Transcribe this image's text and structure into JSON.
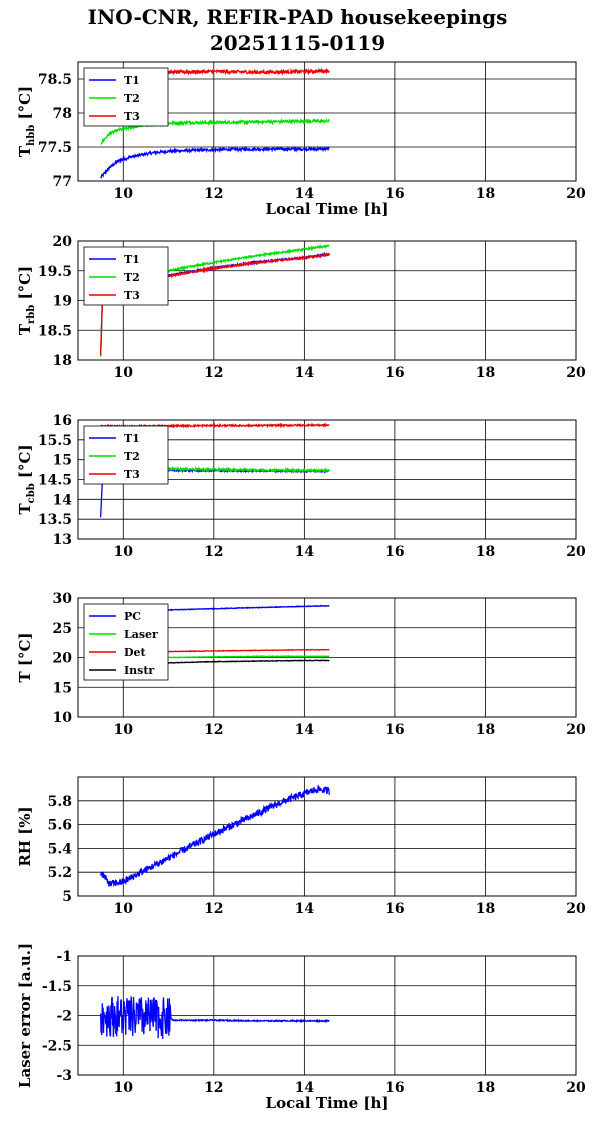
{
  "page": {
    "title_line1": "INO-CNR, REFIR-PAD housekeepings",
    "title_line2": "20251115-0119"
  },
  "colors": {
    "blue": "#0000ff",
    "green": "#00dd00",
    "red": "#ee0000",
    "black": "#000000"
  },
  "chart_data": [
    {
      "type": "line",
      "ylabel": "T",
      "ylabel_sub": "hbb",
      "ylabel_unit": "[°C]",
      "xlabel": "Local Time [h]",
      "xlim": [
        9,
        20
      ],
      "ylim": [
        77,
        78.75
      ],
      "xticks": [
        "10",
        "12",
        "14",
        "16",
        "18",
        "20"
      ],
      "yticks": [
        "77",
        "77.5",
        "78",
        "78.5"
      ],
      "legend": "top-left",
      "series": [
        {
          "name": "T1",
          "color": "#0000ff",
          "points": [
            [
              9.5,
              77.05
            ],
            [
              9.7,
              77.2
            ],
            [
              9.9,
              77.3
            ],
            [
              10.2,
              77.36
            ],
            [
              10.6,
              77.41
            ],
            [
              11,
              77.44
            ],
            [
              11.5,
              77.45
            ],
            [
              12,
              77.46
            ],
            [
              13,
              77.47
            ],
            [
              14,
              77.47
            ],
            [
              14.55,
              77.47
            ]
          ],
          "noise": 0.02
        },
        {
          "name": "T2",
          "color": "#00dd00",
          "points": [
            [
              9.5,
              77.55
            ],
            [
              9.7,
              77.7
            ],
            [
              9.9,
              77.75
            ],
            [
              10.2,
              77.79
            ],
            [
              10.6,
              77.83
            ],
            [
              11,
              77.85
            ],
            [
              11.5,
              77.86
            ],
            [
              12,
              77.86
            ],
            [
              13,
              77.87
            ],
            [
              14,
              77.88
            ],
            [
              14.55,
              77.88
            ]
          ],
          "noise": 0.02
        },
        {
          "name": "T3",
          "color": "#ee0000",
          "points": [
            [
              9.5,
              78.62
            ],
            [
              9.7,
              78.58
            ],
            [
              10,
              78.57
            ],
            [
              10.5,
              78.59
            ],
            [
              11,
              78.6
            ],
            [
              12,
              78.61
            ],
            [
              13,
              78.6
            ],
            [
              14,
              78.61
            ],
            [
              14.55,
              78.62
            ]
          ],
          "noise": 0.025
        }
      ]
    },
    {
      "type": "line",
      "ylabel": "T",
      "ylabel_sub": "rbb",
      "ylabel_unit": "[°C]",
      "xlabel": "",
      "xlim": [
        9,
        20
      ],
      "ylim": [
        18,
        20
      ],
      "xticks": [
        "10",
        "12",
        "14",
        "16",
        "18",
        "20"
      ],
      "yticks": [
        "18",
        "18.5",
        "19",
        "19.5",
        "20"
      ],
      "legend": "top-left",
      "series": [
        {
          "name": "T1",
          "color": "#0000ff",
          "points": [
            [
              9.5,
              18.05
            ],
            [
              9.55,
              19.3
            ],
            [
              10,
              19.32
            ],
            [
              10.5,
              19.36
            ],
            [
              11,
              19.42
            ],
            [
              12,
              19.55
            ],
            [
              13,
              19.65
            ],
            [
              14,
              19.72
            ],
            [
              14.55,
              19.78
            ]
          ],
          "noise": 0.015
        },
        {
          "name": "T2",
          "color": "#00dd00",
          "points": [
            [
              9.5,
              18.05
            ],
            [
              9.55,
              19.35
            ],
            [
              10,
              19.37
            ],
            [
              10.5,
              19.43
            ],
            [
              11,
              19.5
            ],
            [
              12,
              19.64
            ],
            [
              13,
              19.76
            ],
            [
              14,
              19.86
            ],
            [
              14.55,
              19.92
            ]
          ],
          "noise": 0.015
        },
        {
          "name": "T3",
          "color": "#ee0000",
          "points": [
            [
              9.5,
              18.1
            ],
            [
              9.55,
              19.3
            ],
            [
              10,
              19.33
            ],
            [
              10.5,
              19.36
            ],
            [
              11,
              19.41
            ],
            [
              12,
              19.54
            ],
            [
              13,
              19.64
            ],
            [
              14,
              19.72
            ],
            [
              14.55,
              19.77
            ]
          ],
          "noise": 0.015
        }
      ]
    },
    {
      "type": "line",
      "ylabel": "T",
      "ylabel_sub": "cbb",
      "ylabel_unit": "[°C]",
      "xlabel": "",
      "xlim": [
        9,
        20
      ],
      "ylim": [
        13,
        16
      ],
      "xticks": [
        "10",
        "12",
        "14",
        "16",
        "18",
        "20"
      ],
      "yticks": [
        "13",
        "13.5",
        "14",
        "14.5",
        "15",
        "15.5",
        "16"
      ],
      "legend": "top-left",
      "series": [
        {
          "name": "T1",
          "color": "#0000ff",
          "points": [
            [
              9.5,
              13.55
            ],
            [
              9.55,
              14.75
            ],
            [
              10,
              14.74
            ],
            [
              11,
              14.73
            ],
            [
              12,
              14.72
            ],
            [
              13,
              14.72
            ],
            [
              14,
              14.71
            ],
            [
              14.55,
              14.71
            ]
          ],
          "noise": 0.02
        },
        {
          "name": "T2",
          "color": "#00dd00",
          "points": [
            [
              9.5,
              14.5
            ],
            [
              9.55,
              14.78
            ],
            [
              10,
              14.78
            ],
            [
              11,
              14.77
            ],
            [
              12,
              14.75
            ],
            [
              13,
              14.74
            ],
            [
              14,
              14.73
            ],
            [
              14.55,
              14.73
            ]
          ],
          "noise": 0.025
        },
        {
          "name": "T3",
          "color": "#ee0000",
          "points": [
            [
              9.5,
              15.85
            ],
            [
              10,
              15.84
            ],
            [
              11,
              15.85
            ],
            [
              12,
              15.86
            ],
            [
              13,
              15.86
            ],
            [
              14,
              15.87
            ],
            [
              14.55,
              15.87
            ]
          ],
          "noise": 0.02
        }
      ]
    },
    {
      "type": "line",
      "ylabel": "T [°C]",
      "ylabel_sub": "",
      "ylabel_unit": "",
      "xlabel": "",
      "xlim": [
        9,
        20
      ],
      "ylim": [
        10,
        30
      ],
      "xticks": [
        "10",
        "12",
        "14",
        "16",
        "18",
        "20"
      ],
      "yticks": [
        "10",
        "15",
        "20",
        "25",
        "30"
      ],
      "legend": "top-left",
      "series": [
        {
          "name": "PC",
          "color": "#0000ff",
          "points": [
            [
              9.5,
              27.7
            ],
            [
              10,
              27.8
            ],
            [
              11,
              28.0
            ],
            [
              12,
              28.2
            ],
            [
              13,
              28.4
            ],
            [
              14,
              28.6
            ],
            [
              14.55,
              28.7
            ]
          ],
          "noise": 0.05
        },
        {
          "name": "Laser",
          "color": "#00dd00",
          "points": [
            [
              9.5,
              19.8
            ],
            [
              10,
              19.9
            ],
            [
              11,
              20.0
            ],
            [
              12,
              20.1
            ],
            [
              13,
              20.2
            ],
            [
              14,
              20.2
            ],
            [
              14.55,
              20.2
            ]
          ],
          "noise": 0.04
        },
        {
          "name": "Det",
          "color": "#ee0000",
          "points": [
            [
              9.5,
              20.6
            ],
            [
              10,
              20.8
            ],
            [
              11,
              21.0
            ],
            [
              12,
              21.1
            ],
            [
              13,
              21.2
            ],
            [
              14,
              21.3
            ],
            [
              14.55,
              21.3
            ]
          ],
          "noise": 0.04
        },
        {
          "name": "Instr",
          "color": "#000000",
          "points": [
            [
              9.5,
              18.9
            ],
            [
              10,
              19.0
            ],
            [
              11,
              19.1
            ],
            [
              12,
              19.3
            ],
            [
              13,
              19.4
            ],
            [
              14,
              19.5
            ],
            [
              14.55,
              19.5
            ]
          ],
          "noise": 0.05
        }
      ]
    },
    {
      "type": "line",
      "ylabel": "RH [%]",
      "ylabel_sub": "",
      "ylabel_unit": "",
      "xlabel": "",
      "xlim": [
        9,
        20
      ],
      "ylim": [
        5,
        6
      ],
      "xticks": [
        "10",
        "12",
        "14",
        "16",
        "18",
        "20"
      ],
      "yticks": [
        "5",
        "5.2",
        "5.4",
        "5.6",
        "5.8"
      ],
      "legend": "none",
      "series": [
        {
          "name": "",
          "color": "#0000ff",
          "points": [
            [
              9.5,
              5.2
            ],
            [
              9.7,
              5.1
            ],
            [
              10,
              5.12
            ],
            [
              10.5,
              5.22
            ],
            [
              11,
              5.32
            ],
            [
              11.5,
              5.42
            ],
            [
              12,
              5.52
            ],
            [
              12.5,
              5.61
            ],
            [
              13,
              5.7
            ],
            [
              13.5,
              5.79
            ],
            [
              14,
              5.86
            ],
            [
              14.3,
              5.9
            ],
            [
              14.55,
              5.88
            ]
          ],
          "noise": 0.03
        }
      ]
    },
    {
      "type": "line",
      "ylabel": "Laser error [a.u.]",
      "ylabel_sub": "",
      "ylabel_unit": "",
      "xlabel": "Local Time [h]",
      "xlim": [
        9,
        20
      ],
      "ylim": [
        -3,
        -1
      ],
      "xticks": [
        "10",
        "12",
        "14",
        "16",
        "18",
        "20"
      ],
      "yticks": [
        "-3",
        "-2.5",
        "-2",
        "-1.5",
        "-1"
      ],
      "legend": "none",
      "series": [
        {
          "name": "",
          "color": "#0000ff",
          "points": [
            [
              9.5,
              -2.0
            ],
            [
              11.05,
              -2.05
            ],
            [
              11.1,
              -2.08
            ],
            [
              12,
              -2.08
            ],
            [
              13,
              -2.09
            ],
            [
              14,
              -2.09
            ],
            [
              14.55,
              -2.09
            ]
          ],
          "noise": 0.01,
          "burst": [
            9.5,
            11.05,
            0.35
          ]
        }
      ]
    }
  ]
}
